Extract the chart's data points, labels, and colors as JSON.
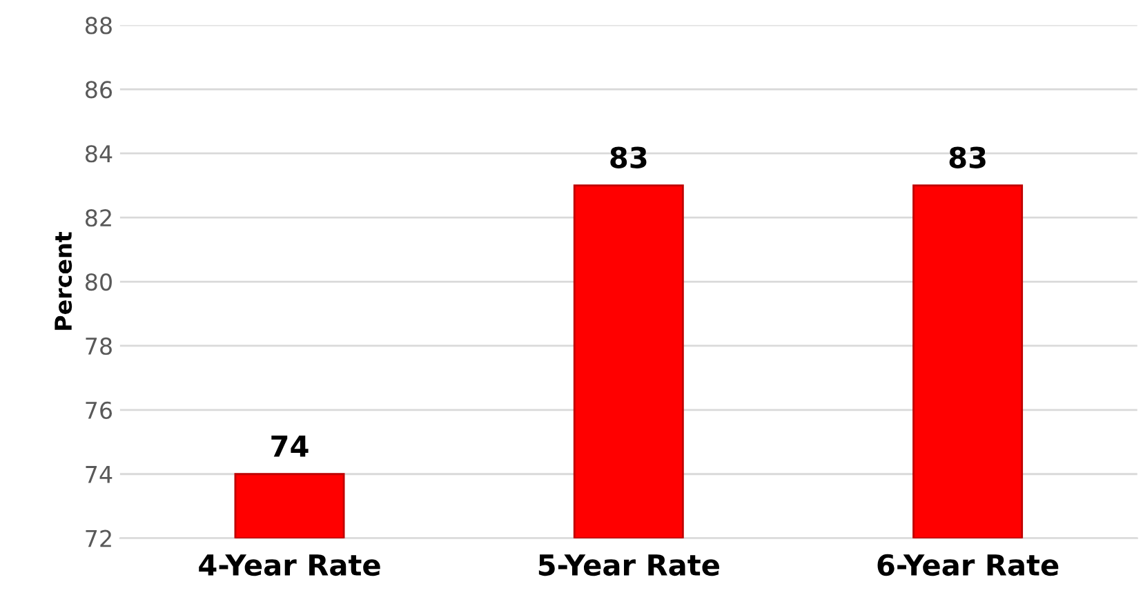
{
  "chart_data": {
    "type": "bar",
    "ylabel": "Percent",
    "categories": [
      "4-Year Rate",
      "5-Year Rate",
      "6-Year Rate"
    ],
    "values": [
      74,
      83,
      83
    ],
    "color": "#ff0000",
    "ylim": [
      72,
      88
    ],
    "yticks": [
      72,
      74,
      76,
      78,
      80,
      82,
      84,
      86,
      88
    ],
    "grid": "y",
    "data_labels": true
  }
}
